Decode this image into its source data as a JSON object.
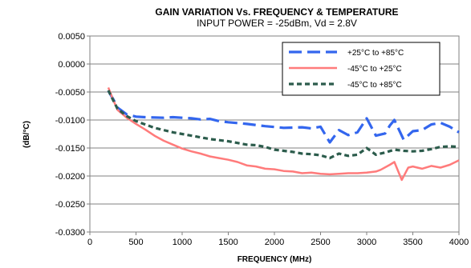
{
  "chart_data": {
    "type": "line",
    "title": "GAIN VARIATION  Vs.  FREQUENCY  &  TEMPERATURE",
    "subtitle": "INPUT POWER = -25dBm,  Vd = 2.8V",
    "xlabel": "FREQUENCY (MHz)",
    "ylabel": "(dB/°C)",
    "xlim": [
      0,
      4000
    ],
    "ylim": [
      -0.03,
      0.005
    ],
    "x_ticks": [
      0,
      500,
      1000,
      1500,
      2000,
      2500,
      3000,
      3500,
      4000
    ],
    "x_tick_labels": [
      "0",
      "500",
      "1000",
      "1500",
      "2000",
      "2500",
      "3000",
      "3500",
      "4000"
    ],
    "y_ticks": [
      0.005,
      0,
      -0.005,
      -0.01,
      -0.015,
      -0.02,
      -0.025,
      -0.03
    ],
    "y_tick_labels": [
      "0.0050",
      "0.0000",
      "-0.0050",
      "-0.0100",
      "-0.0150",
      "-0.0200",
      "-0.0250",
      "-0.0300"
    ],
    "grid": "horizontal",
    "legend_position": "top-right",
    "series": [
      {
        "name": "+25°C to +85°C",
        "color": "#3366ee",
        "dash": "long-dash",
        "points": [
          [
            200,
            -0.0048
          ],
          [
            250,
            -0.0062
          ],
          [
            300,
            -0.0078
          ],
          [
            400,
            -0.009
          ],
          [
            500,
            -0.0094
          ],
          [
            600,
            -0.0095
          ],
          [
            800,
            -0.0096
          ],
          [
            900,
            -0.0095
          ],
          [
            1000,
            -0.0096
          ],
          [
            1100,
            -0.0097
          ],
          [
            1200,
            -0.0099
          ],
          [
            1300,
            -0.0098
          ],
          [
            1400,
            -0.0102
          ],
          [
            1500,
            -0.0104
          ],
          [
            1700,
            -0.0107
          ],
          [
            1900,
            -0.0111
          ],
          [
            2100,
            -0.0114
          ],
          [
            2300,
            -0.0113
          ],
          [
            2400,
            -0.0115
          ],
          [
            2500,
            -0.0112
          ],
          [
            2600,
            -0.014
          ],
          [
            2700,
            -0.0118
          ],
          [
            2800,
            -0.0127
          ],
          [
            2900,
            -0.0122
          ],
          [
            3000,
            -0.0097
          ],
          [
            3100,
            -0.0128
          ],
          [
            3200,
            -0.0124
          ],
          [
            3250,
            -0.011
          ],
          [
            3300,
            -0.01
          ],
          [
            3400,
            -0.0135
          ],
          [
            3500,
            -0.012
          ],
          [
            3600,
            -0.0118
          ],
          [
            3700,
            -0.0108
          ],
          [
            3800,
            -0.0105
          ],
          [
            3900,
            -0.0112
          ],
          [
            4000,
            -0.0122
          ]
        ]
      },
      {
        "name": "-45°C to +25°C",
        "color": "#ff7b7b",
        "dash": "solid",
        "points": [
          [
            200,
            -0.0042
          ],
          [
            250,
            -0.0063
          ],
          [
            300,
            -0.0082
          ],
          [
            400,
            -0.0096
          ],
          [
            500,
            -0.0107
          ],
          [
            600,
            -0.0117
          ],
          [
            700,
            -0.0128
          ],
          [
            800,
            -0.0137
          ],
          [
            900,
            -0.0144
          ],
          [
            1000,
            -0.0151
          ],
          [
            1100,
            -0.0156
          ],
          [
            1200,
            -0.016
          ],
          [
            1300,
            -0.0165
          ],
          [
            1400,
            -0.0168
          ],
          [
            1500,
            -0.0171
          ],
          [
            1600,
            -0.0175
          ],
          [
            1700,
            -0.0181
          ],
          [
            1800,
            -0.0183
          ],
          [
            1900,
            -0.0187
          ],
          [
            2000,
            -0.0188
          ],
          [
            2100,
            -0.0191
          ],
          [
            2200,
            -0.0192
          ],
          [
            2300,
            -0.0195
          ],
          [
            2400,
            -0.0194
          ],
          [
            2500,
            -0.0196
          ],
          [
            2600,
            -0.0197
          ],
          [
            2700,
            -0.0196
          ],
          [
            2800,
            -0.0195
          ],
          [
            2900,
            -0.0195
          ],
          [
            3000,
            -0.0194
          ],
          [
            3100,
            -0.0192
          ],
          [
            3150,
            -0.0189
          ],
          [
            3250,
            -0.018
          ],
          [
            3300,
            -0.0175
          ],
          [
            3380,
            -0.0207
          ],
          [
            3450,
            -0.0185
          ],
          [
            3500,
            -0.0183
          ],
          [
            3600,
            -0.0187
          ],
          [
            3700,
            -0.0182
          ],
          [
            3800,
            -0.0185
          ],
          [
            3900,
            -0.018
          ],
          [
            4000,
            -0.0172
          ]
        ]
      },
      {
        "name": "-45°C to +85°C",
        "color": "#2c5c4c",
        "dash": "short-dash",
        "points": [
          [
            200,
            -0.0047
          ],
          [
            250,
            -0.0064
          ],
          [
            300,
            -0.008
          ],
          [
            400,
            -0.0093
          ],
          [
            500,
            -0.0102
          ],
          [
            600,
            -0.0108
          ],
          [
            700,
            -0.0114
          ],
          [
            800,
            -0.0118
          ],
          [
            900,
            -0.0122
          ],
          [
            1000,
            -0.0125
          ],
          [
            1100,
            -0.0128
          ],
          [
            1200,
            -0.0131
          ],
          [
            1300,
            -0.0134
          ],
          [
            1400,
            -0.0136
          ],
          [
            1500,
            -0.0138
          ],
          [
            1600,
            -0.0141
          ],
          [
            1700,
            -0.0144
          ],
          [
            1800,
            -0.0145
          ],
          [
            1900,
            -0.0148
          ],
          [
            2000,
            -0.0153
          ],
          [
            2100,
            -0.0155
          ],
          [
            2200,
            -0.0157
          ],
          [
            2300,
            -0.016
          ],
          [
            2400,
            -0.0161
          ],
          [
            2500,
            -0.0163
          ],
          [
            2600,
            -0.0168
          ],
          [
            2700,
            -0.016
          ],
          [
            2800,
            -0.0164
          ],
          [
            2900,
            -0.0162
          ],
          [
            3000,
            -0.015
          ],
          [
            3100,
            -0.0162
          ],
          [
            3200,
            -0.0158
          ],
          [
            3300,
            -0.0153
          ],
          [
            3400,
            -0.0155
          ],
          [
            3500,
            -0.0156
          ],
          [
            3600,
            -0.0155
          ],
          [
            3700,
            -0.0152
          ],
          [
            3800,
            -0.0148
          ],
          [
            3900,
            -0.0147
          ],
          [
            4000,
            -0.0148
          ]
        ]
      }
    ]
  }
}
